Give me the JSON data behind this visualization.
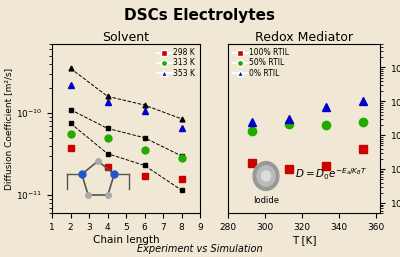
{
  "title": "DSCs Electrolytes",
  "subtitle": "Experiment vs Simulation",
  "bg_color": "#f0e8d5",
  "left_title": "Solvent",
  "right_title": "Redox Mediator",
  "ylabel": "Diffusion Coefficient [m²/s]",
  "left_xlabel": "Chain length",
  "right_xlabel": "T [K]",
  "colors": {
    "red": "#cc0000",
    "green": "#22aa00",
    "blue": "#0000cc",
    "black": "#111111"
  },
  "solvent_legend": [
    "298 K",
    "313 K",
    "353 K"
  ],
  "redox_legend": [
    "100% RTIL",
    "50% RTIL",
    "0% RTIL"
  ],
  "formula": "$D = D_0e^{-E_a/K_BT}$",
  "iodide_label": "Iodide",
  "chain": [
    2,
    4,
    6,
    8
  ],
  "exp298": [
    3.8e-11,
    2.2e-11,
    1.7e-11,
    1.55e-11
  ],
  "exp313": [
    5.5e-11,
    5e-11,
    3.5e-11,
    2.8e-11
  ],
  "exp353": [
    2.2e-10,
    1.35e-10,
    1.05e-10,
    6.5e-11
  ],
  "sim298": [
    7.5e-11,
    3.2e-11,
    2.3e-11,
    1.15e-11
  ],
  "sim313": [
    1.1e-10,
    6.5e-11,
    5e-11,
    3e-11
  ],
  "sim353": [
    3.5e-10,
    1.6e-10,
    1.25e-10,
    8.5e-11
  ],
  "T_redox": [
    293,
    313,
    333,
    353
  ],
  "RTIL100": [
    1.5e-11,
    1e-11,
    1.2e-11,
    4e-11
  ],
  "RTIL50": [
    1.3e-10,
    2.2e-10,
    2e-10,
    2.5e-10
  ],
  "RTIL0": [
    2.5e-10,
    3e-10,
    7e-10,
    1e-09
  ]
}
